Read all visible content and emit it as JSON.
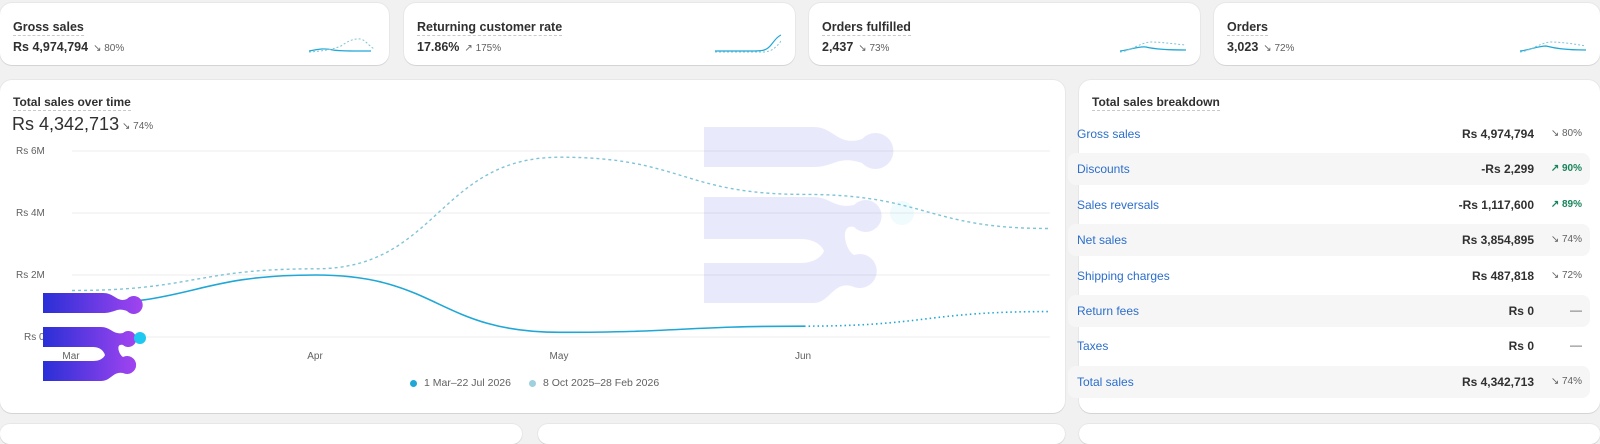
{
  "metrics": [
    {
      "title": "Gross sales",
      "value": "Rs 4,974,794",
      "change": "↘ 80%"
    },
    {
      "title": "Returning customer rate",
      "value": "17.86%",
      "change": "↗ 175%"
    },
    {
      "title": "Orders fulfilled",
      "value": "2,437",
      "change": "↘ 73%"
    },
    {
      "title": "Orders",
      "value": "3,023",
      "change": "↘ 72%"
    }
  ],
  "sales_over_time": {
    "title": "Total sales over time",
    "value": "Rs 4,342,713",
    "change": "↘ 74%",
    "legend": [
      "1 Mar–22 Jul 2026",
      "8 Oct 2025–28 Feb 2026"
    ]
  },
  "chart_data": {
    "type": "line",
    "title": "Total sales over time",
    "y_ticks": [
      "Rs 6M",
      "Rs 4M",
      "Rs 2M",
      "Rs 0"
    ],
    "x_ticks": [
      "Mar",
      "Apr",
      "May",
      "Jun"
    ],
    "ylim": [
      0,
      6000000
    ],
    "grid": true,
    "legend_position": "bottom",
    "series": [
      {
        "name": "1 Mar–22 Jul 2026",
        "color": "#1fa7d6",
        "style": "solid",
        "x": [
          0,
          1,
          2,
          3,
          4.0
        ],
        "values": [
          1050000,
          2000000,
          150000,
          350000,
          820000
        ]
      },
      {
        "name": "8 Oct 2025–28 Feb 2026",
        "color": "#7fc4d6",
        "style": "dashed",
        "x": [
          0,
          1,
          2,
          3,
          4.0
        ],
        "values": [
          1500000,
          2200000,
          5800000,
          4600000,
          3500000
        ]
      }
    ]
  },
  "breakdown": {
    "title": "Total sales breakdown",
    "rows": [
      {
        "label": "Gross sales",
        "value": "Rs 4,974,794",
        "change": "↘ 80%",
        "trend": "down"
      },
      {
        "label": "Discounts",
        "value": "-Rs 2,299",
        "change": "↗ 90%",
        "trend": "up"
      },
      {
        "label": "Sales reversals",
        "value": "-Rs 1,117,600",
        "change": "↗ 89%",
        "trend": "up"
      },
      {
        "label": "Net sales",
        "value": "Rs 3,854,895",
        "change": "↘ 74%",
        "trend": "down"
      },
      {
        "label": "Shipping charges",
        "value": "Rs 487,818",
        "change": "↘ 72%",
        "trend": "down"
      },
      {
        "label": "Return fees",
        "value": "Rs 0",
        "change": "—",
        "trend": "none"
      },
      {
        "label": "Taxes",
        "value": "Rs 0",
        "change": "—",
        "trend": "none"
      },
      {
        "label": "Total sales",
        "value": "Rs 4,342,713",
        "change": "↘ 74%",
        "trend": "down"
      }
    ]
  },
  "colors": {
    "link": "#2c6ecb",
    "positive": "#17845b",
    "series_current": "#1fa7d6",
    "series_previous": "#7fc4d6"
  }
}
